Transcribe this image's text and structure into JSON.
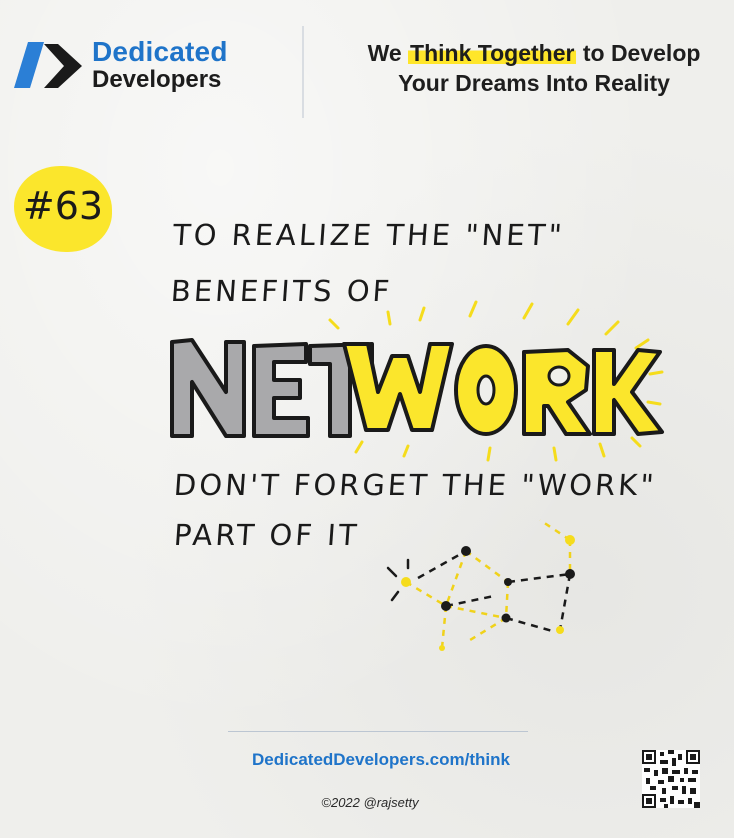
{
  "brand": {
    "line1": "Dedicated",
    "line2": "Developers"
  },
  "tagline": {
    "pre": "We ",
    "highlight": "Think Together",
    "post": " to Develop",
    "line2": "Your Dreams Into Reality"
  },
  "badge": "#63",
  "note": {
    "line1": "TO REALIZE THE \"NET\"",
    "line2": "BENEFITS OF",
    "word_net": "NET",
    "word_work": "WORK",
    "line3": "DON'T FORGET THE \"WORK\"",
    "line4": "PART OF IT"
  },
  "footer": {
    "url": "DedicatedDevelopers.com/think",
    "copyright": "©2022 @rajsetty"
  },
  "colors": {
    "brand_blue": "#1f74c9",
    "highlight_yellow": "#ffe62a",
    "net_gray": "#a9a9ab"
  },
  "icons": [
    "dedicated-developers-logo-icon",
    "qr-code-icon",
    "network-nodes-icon"
  ]
}
